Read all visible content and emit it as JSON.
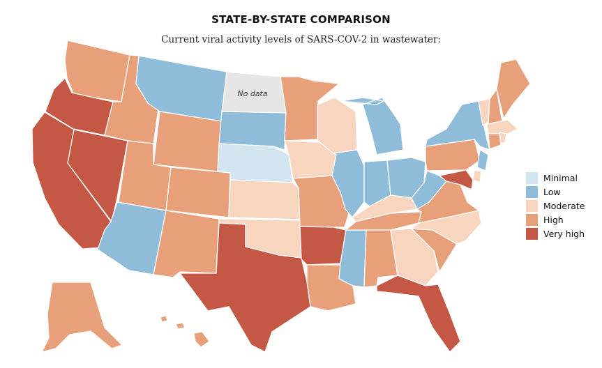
{
  "title": "STATE-BY-STATE COMPARISON",
  "subtitle": "Current viral activity levels of SARS-COV-2 in wastewater:",
  "no_data_label": "No data",
  "legend": [
    {
      "label": "Minimal",
      "color": "#d2e5f0"
    },
    {
      "label": "Low",
      "color": "#8fbcd9"
    },
    {
      "label": "Moderate",
      "color": "#f7d5bf"
    },
    {
      "label": "High",
      "color": "#e8a07b"
    },
    {
      "label": "Very high",
      "color": "#c45844"
    }
  ],
  "no_data_color": "#e6e6e6",
  "states": {
    "WA": "High",
    "OR": "Very high",
    "CA": "Very high",
    "NV": "Very high",
    "ID": "High",
    "MT": "Low",
    "WY": "High",
    "UT": "High",
    "AZ": "Low",
    "CO": "High",
    "NM": "High",
    "ND": "No data",
    "SD": "Low",
    "NE": "Minimal",
    "KS": "Moderate",
    "OK": "Moderate",
    "TX": "Very high",
    "MN": "High",
    "IA": "Moderate",
    "MO": "High",
    "AR": "Very high",
    "LA": "High",
    "WI": "Moderate",
    "IL": "Low",
    "MS": "Low",
    "MI": "Low",
    "IN": "Low",
    "OH": "Low",
    "KY": "Moderate",
    "TN": "High",
    "AL": "High",
    "GA": "Moderate",
    "FL": "Very high",
    "SC": "High",
    "NC": "Moderate",
    "VA": "High",
    "WV": "Low",
    "PA": "High",
    "NY": "Low",
    "NJ": "Low",
    "DE": "Moderate",
    "MD": "Very high",
    "VT": "Moderate",
    "NH": "High",
    "ME": "High",
    "MA": "Moderate",
    "CT": "High",
    "RI": "Moderate",
    "AK": "High",
    "HI": "High"
  }
}
